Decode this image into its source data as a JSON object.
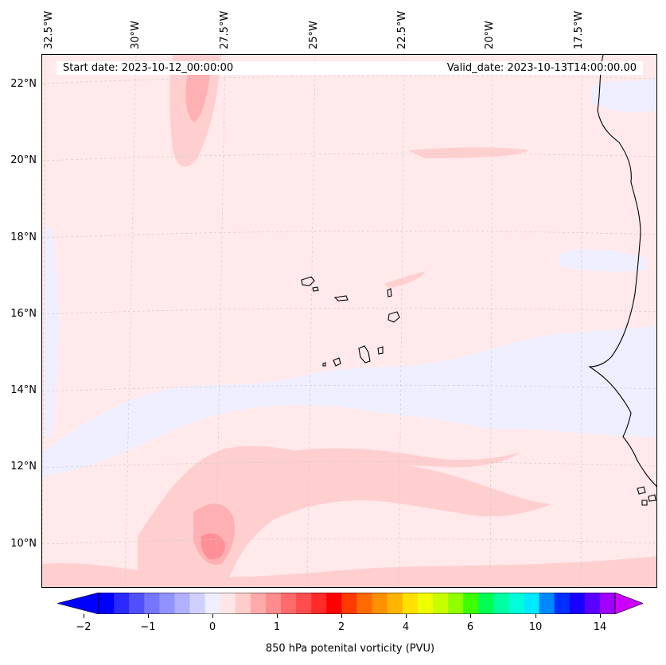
{
  "header": {
    "start_date": "Start date: 2023-10-12_00:00:00",
    "valid_date": "Valid_date: 2023-10-13T14:00:00.00"
  },
  "axes": {
    "longitude_labels": [
      "32.5°W",
      "30°W",
      "27.5°W",
      "25°W",
      "22.5°W",
      "20°W",
      "17.5°W"
    ],
    "latitude_labels": [
      "22°N",
      "20°N",
      "18°N",
      "16°N",
      "14°N",
      "12°N",
      "10°N"
    ]
  },
  "colorbar": {
    "label": "850 hPa potenital vorticity (PVU)",
    "ticks": [
      "−2",
      "−1",
      "0",
      "1",
      "2",
      "4",
      "6",
      "10",
      "14"
    ],
    "colors": [
      "#0000ff",
      "#2a2aff",
      "#5050ff",
      "#7575ff",
      "#9292ff",
      "#b0b0ff",
      "#d0d0ff",
      "#eeeeff",
      "#ffe6e6",
      "#ffcccc",
      "#ffaaaa",
      "#ff8c8c",
      "#ff6a6a",
      "#ff4d4d",
      "#ff2a2a",
      "#ff0000",
      "#ff3a00",
      "#ff6a00",
      "#ff9000",
      "#ffb400",
      "#ffe000",
      "#f0ff00",
      "#c8ff00",
      "#90ff00",
      "#3cff00",
      "#00ff50",
      "#00ffa0",
      "#00ffd8",
      "#00e8ff",
      "#0088ff",
      "#0030ff",
      "#1800ff",
      "#5a00ff",
      "#a000ff"
    ],
    "min_arrow_color": "#0000ff",
    "max_arrow_color": "#cc00ff"
  },
  "map": {
    "background_color": "#ffe9ea",
    "positive_light": "#ffcfd0",
    "positive_mid": "#ffb0b3",
    "positive_strong": "#ff8f96",
    "negative_light": "#eeeeff",
    "coastline_color": "#000000"
  }
}
